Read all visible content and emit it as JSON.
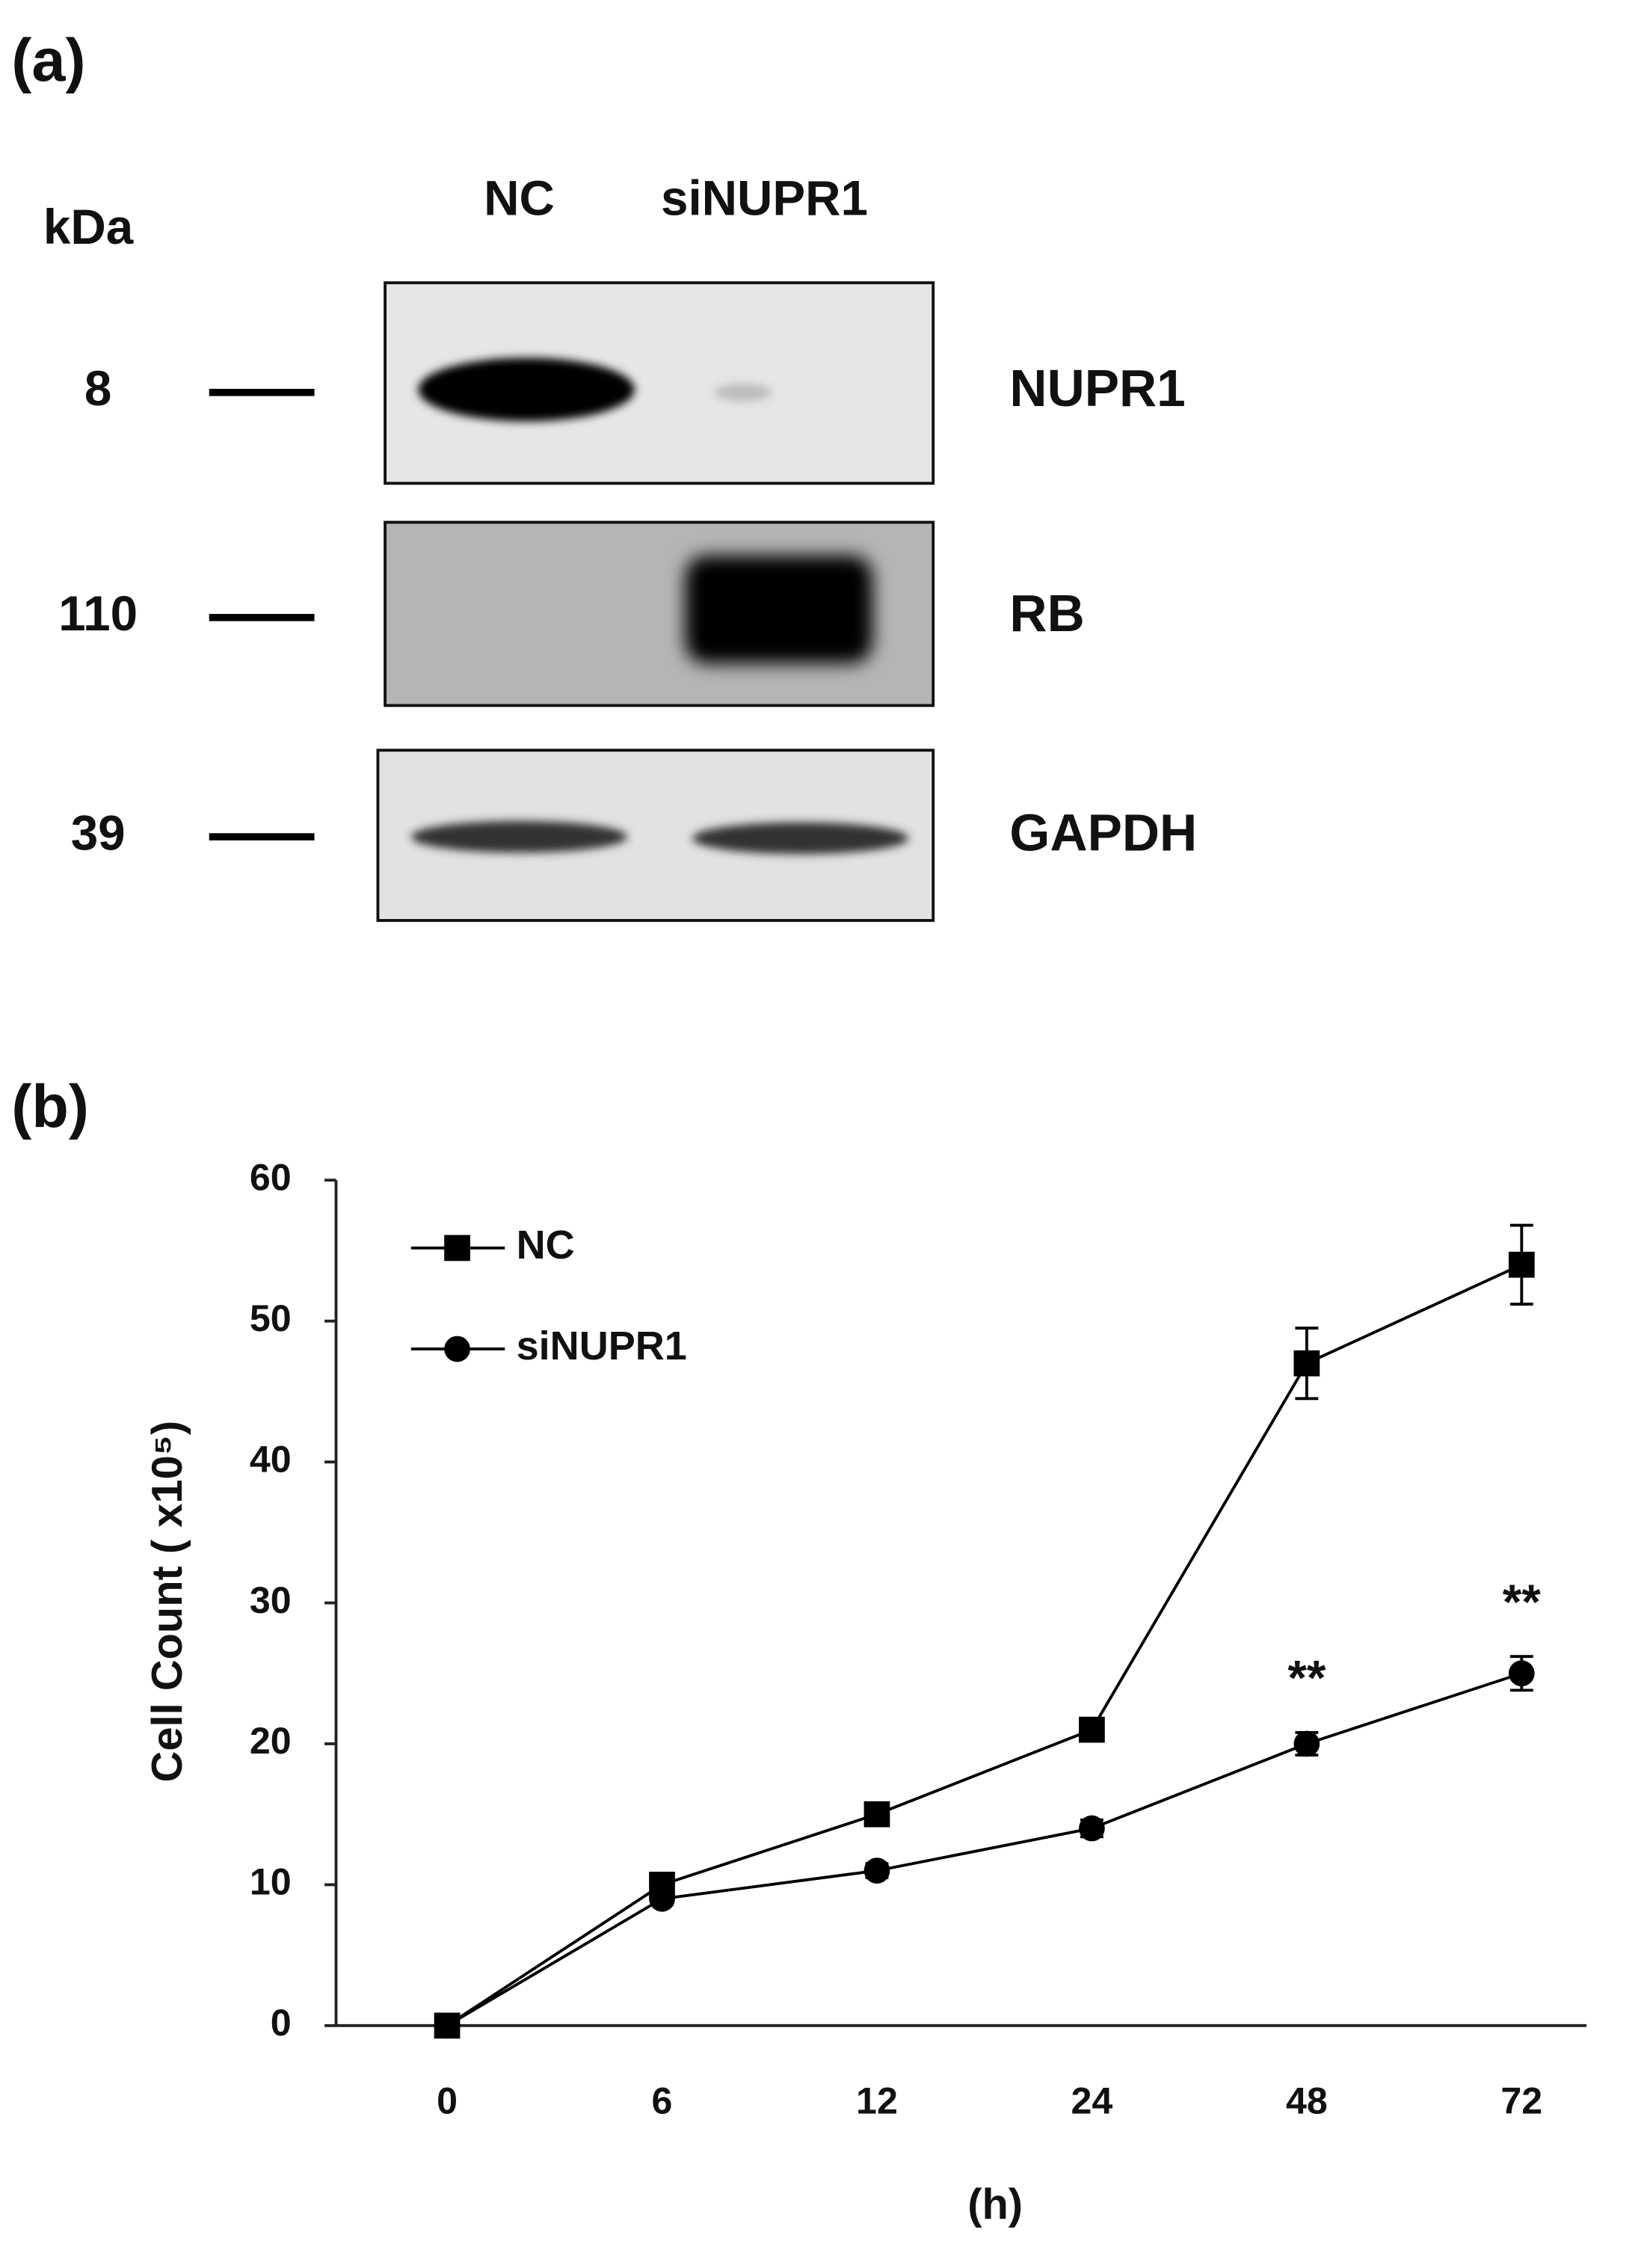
{
  "panel_a": {
    "label": "(a)",
    "unit": "kDa",
    "lanes": [
      "NC",
      "siNUPR1"
    ],
    "markers": [
      {
        "size": 8,
        "protein": "NUPR1"
      },
      {
        "size": 110,
        "protein": "RB"
      },
      {
        "size": 39,
        "protein": "GAPDH"
      }
    ]
  },
  "chart_data": {
    "type": "line",
    "panel_label": "(b)",
    "x_label": "(h)",
    "y_label": "Cell Count ( x10⁵)",
    "categories": [
      "0",
      "6",
      "12",
      "24",
      "48",
      "72"
    ],
    "series": [
      {
        "name": "NC",
        "color": "#000000",
        "marker": "square",
        "values": [
          0,
          10,
          15,
          21,
          47,
          54
        ],
        "errors": [
          0,
          0.5,
          0.5,
          0.7,
          2.5,
          2.8
        ]
      },
      {
        "name": "siNUPR1",
        "color": "#000000",
        "marker": "circle",
        "values": [
          0,
          9,
          11,
          14,
          20,
          25
        ],
        "errors": [
          0,
          0.4,
          0.5,
          0.6,
          0.8,
          1.2
        ]
      }
    ],
    "annotations": [
      {
        "text": "**",
        "x": "48"
      },
      {
        "text": "**",
        "x": "72"
      }
    ],
    "ylim": [
      0,
      60
    ],
    "yticks": [
      0,
      10,
      20,
      30,
      40,
      50,
      60
    ],
    "legend": "top-left"
  }
}
